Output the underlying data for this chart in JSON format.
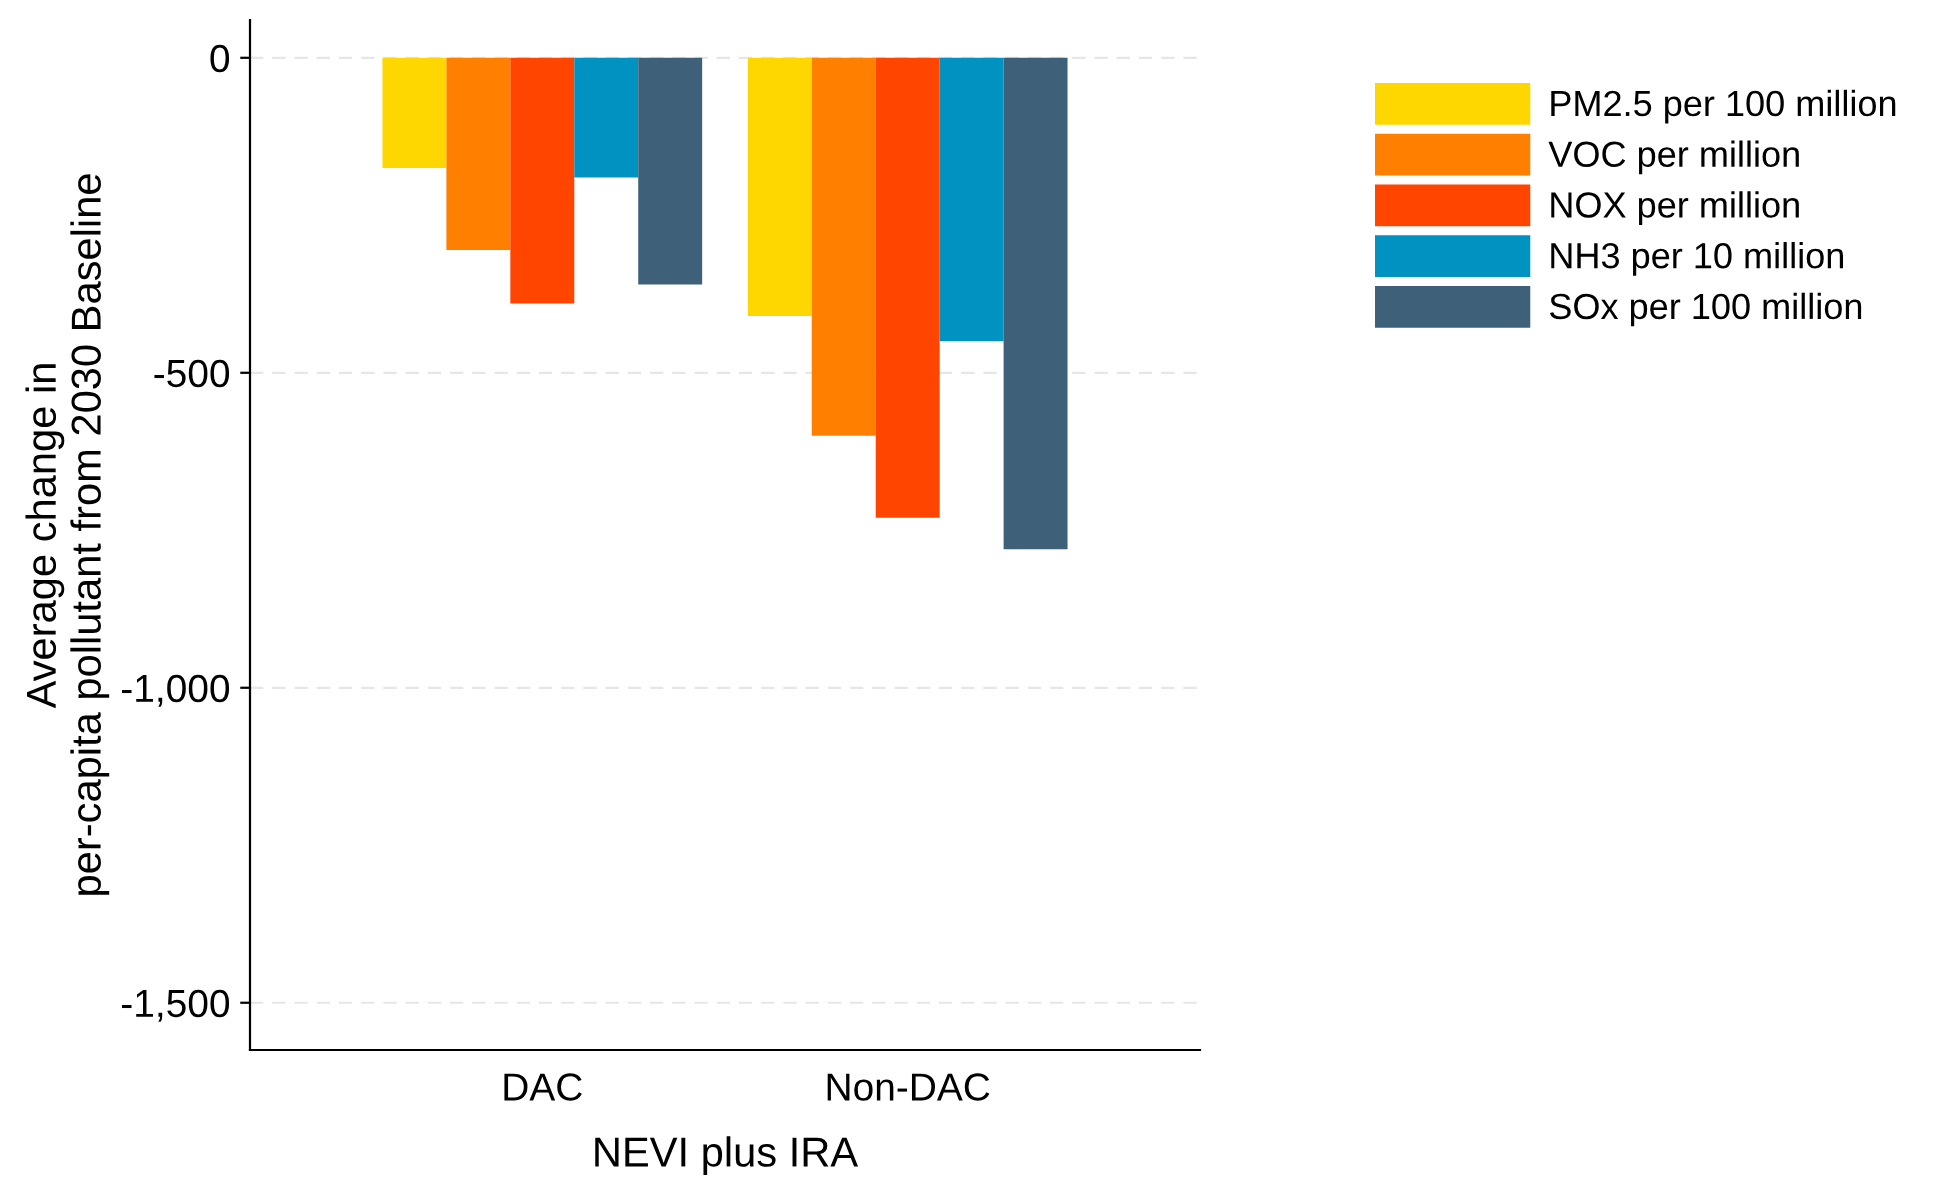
{
  "chart_data": {
    "type": "bar",
    "xlabel": "NEVI plus IRA",
    "ylabel": "Average change in\nper-capita pollutant from 2030 Baseline",
    "categories": [
      "DAC",
      "Non-DAC"
    ],
    "series": [
      {
        "name": "PM2.5 per 100 million",
        "color": "#ffd700",
        "values": [
          -175,
          -410
        ]
      },
      {
        "name": "VOC per million",
        "color": "#ff8000",
        "values": [
          -305,
          -600
        ]
      },
      {
        "name": "NOX per million",
        "color": "#ff4500",
        "values": [
          -390,
          -730
        ]
      },
      {
        "name": "NH3 per 10 million",
        "color": "#0092c0",
        "values": [
          -190,
          -450
        ]
      },
      {
        "name": "SOx per 100 million",
        "color": "#3e6079",
        "values": [
          -360,
          -780
        ]
      }
    ],
    "ylim": [
      -1575,
      60
    ],
    "yticks": [
      {
        "value": 0,
        "label": "0"
      },
      {
        "value": -500,
        "label": "-500"
      },
      {
        "value": -1000,
        "label": "-1,000"
      },
      {
        "value": -1500,
        "label": "-1,500"
      }
    ],
    "grid": "y",
    "legend": "right"
  }
}
